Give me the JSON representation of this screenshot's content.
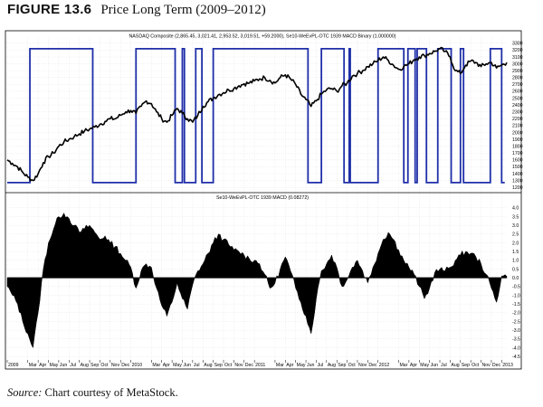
{
  "figure": {
    "label": "FIGURE 13.6",
    "title": "Price Long Term (2009–2012)"
  },
  "source": {
    "prefix": "Source:",
    "text": " Chart courtesy of MetaStock."
  },
  "chart_data": [
    {
      "type": "line",
      "title": "NASDAQ Composite (2,865.45, 3,021.41, 2,953.52, 3,019.51, +59.2000), Se10-WeEvPL-OTC 1939 MACD Binary (1.000000)",
      "ylim": [
        1150,
        3350
      ],
      "y_ticks": [
        1200,
        1300,
        1400,
        1500,
        1600,
        1700,
        1800,
        1900,
        2000,
        2100,
        2200,
        2300,
        2400,
        2500,
        2600,
        2700,
        2800,
        2900,
        3000,
        3100,
        3200,
        3300
      ],
      "grid": true,
      "series": [
        {
          "name": "NASDAQ Composite",
          "color": "#000000",
          "x": [
            0,
            0.5,
            1,
            1.5,
            2,
            2.5,
            3,
            3.5,
            4,
            4.5,
            5,
            5.5,
            6,
            6.5,
            7,
            7.5,
            8,
            8.5,
            9,
            9.5,
            10,
            10.5,
            11,
            11.5,
            12,
            12.5,
            13,
            13.5,
            14,
            14.5,
            15,
            15.5,
            16,
            16.5,
            17,
            17.5,
            18,
            18.5,
            19,
            19.5,
            20,
            20.5,
            21,
            21.5,
            22,
            22.5,
            23,
            23.5,
            24,
            24.5,
            25,
            25.5,
            26,
            26.5,
            27,
            27.5,
            28,
            28.5,
            29,
            29.5,
            30,
            30.5,
            31,
            31.5,
            32,
            32.5,
            33,
            33.5,
            34,
            34.5,
            35,
            35.5,
            36,
            36.5,
            37,
            37.5,
            38,
            38.5,
            39,
            39.5,
            40,
            40.5,
            41,
            41.5,
            42,
            42.5,
            43,
            43.5,
            44,
            44.5,
            45,
            45.5,
            46,
            46.5,
            47,
            47.5,
            48,
            48.5
          ],
          "values": [
            1600,
            1550,
            1500,
            1420,
            1350,
            1300,
            1400,
            1560,
            1650,
            1700,
            1800,
            1860,
            1900,
            1940,
            1980,
            2020,
            2050,
            2080,
            2120,
            2160,
            2200,
            2200,
            2250,
            2300,
            2320,
            2280,
            2380,
            2460,
            2420,
            2300,
            2200,
            2150,
            2250,
            2350,
            2280,
            2200,
            2150,
            2250,
            2380,
            2450,
            2500,
            2550,
            2580,
            2620,
            2640,
            2680,
            2710,
            2720,
            2750,
            2780,
            2800,
            2760,
            2720,
            2800,
            2840,
            2780,
            2700,
            2560,
            2480,
            2380,
            2460,
            2560,
            2620,
            2640,
            2600,
            2680,
            2720,
            2820,
            2860,
            2900,
            2960,
            3000,
            3050,
            3100,
            3050,
            2980,
            2920,
            2960,
            3000,
            3060,
            3100,
            3120,
            3150,
            3180,
            3220,
            3180,
            3100,
            2900,
            2860,
            2980,
            3040,
            3020,
            2960,
            3000,
            3020,
            2940,
            2980,
            3019.51
          ]
        }
      ]
    },
    {
      "type": "line",
      "series": [
        {
          "name": "Se10-WeEvPL-OTC 1939 MACD Binary",
          "color": "#1f2fa8",
          "x": [
            0,
            2.2,
            2.2,
            8.3,
            8.3,
            12.5,
            12.5,
            16.3,
            16.3,
            17.0,
            17.0,
            17.2,
            17.2,
            18.3,
            18.3,
            18.9,
            18.9,
            20.0,
            20.0,
            29.2,
            29.2,
            30.5,
            30.5,
            32.7,
            32.7,
            33.2,
            33.2,
            33.3,
            33.3,
            36.0,
            36.0,
            38.5,
            38.5,
            38.9,
            38.9,
            39.6,
            39.6,
            39.8,
            39.8,
            40.7,
            40.7,
            41.8,
            41.8,
            43.1,
            43.1,
            44.0,
            44.0,
            44.3,
            44.3,
            46.9,
            46.9,
            48.0,
            48.0,
            48.3
          ],
          "values": [
            1270,
            1270,
            3220,
            3220,
            1270,
            1270,
            3220,
            3220,
            1270,
            1270,
            3220,
            3220,
            1270,
            1270,
            3220,
            3220,
            1270,
            1270,
            3220,
            3220,
            1270,
            1270,
            3220,
            3220,
            1270,
            1270,
            3220,
            3220,
            1270,
            1270,
            3220,
            3220,
            1270,
            1270,
            3220,
            3220,
            1270,
            1270,
            3220,
            3220,
            1270,
            1270,
            3220,
            3220,
            1270,
            1270,
            3220,
            3220,
            1270,
            1270,
            3220,
            3220,
            1270,
            1270
          ]
        }
      ]
    },
    {
      "type": "area",
      "title": "Se10-WeEvPL-OTC 1939 MACD (0.08272)",
      "ylim": [
        -4.7,
        4.3
      ],
      "y_ticks": [
        4.0,
        3.5,
        3.0,
        2.5,
        2.0,
        1.5,
        1.0,
        0.5,
        0.0,
        -0.5,
        -1.0,
        -1.5,
        -2.0,
        -2.5,
        -3.0,
        -3.5,
        -4.0,
        -4.5
      ],
      "grid": true,
      "series": [
        {
          "name": "MACD",
          "color": "#000000",
          "x": [
            0,
            0.5,
            1,
            1.5,
            2,
            2.5,
            3,
            3.5,
            4,
            4.5,
            5,
            5.5,
            6,
            6.5,
            7,
            7.5,
            8,
            8.5,
            9,
            9.5,
            10,
            10.5,
            11,
            11.5,
            12,
            12.5,
            13,
            13.5,
            14,
            14.5,
            15,
            15.5,
            16,
            16.5,
            17,
            17.5,
            18,
            18.5,
            19,
            19.5,
            20,
            20.5,
            21,
            21.5,
            22,
            22.5,
            23,
            23.5,
            24,
            24.5,
            25,
            25.5,
            26,
            26.5,
            27,
            27.5,
            28,
            28.5,
            29,
            29.5,
            30,
            30.5,
            31,
            31.5,
            32,
            32.5,
            33,
            33.5,
            34,
            34.5,
            35,
            35.5,
            36,
            36.5,
            37,
            37.5,
            38,
            38.5,
            39,
            39.5,
            40,
            40.5,
            41,
            41.5,
            42,
            42.5,
            43,
            43.5,
            44,
            44.5,
            45,
            45.5,
            46,
            46.5,
            47,
            47.5,
            48,
            48.5
          ],
          "values": [
            -0.5,
            -1.0,
            -1.5,
            -2.5,
            -3.2,
            -4.0,
            -2.0,
            0.5,
            2.0,
            2.8,
            3.5,
            3.7,
            3.4,
            3.0,
            2.6,
            2.8,
            3.0,
            2.6,
            2.2,
            2.4,
            2.0,
            1.8,
            1.4,
            1.0,
            0.6,
            -0.6,
            0.4,
            0.8,
            0.6,
            -0.6,
            -1.6,
            -2.2,
            -1.4,
            -0.3,
            -1.2,
            -1.8,
            -0.4,
            0.4,
            0.8,
            1.4,
            2.0,
            2.5,
            2.2,
            1.9,
            1.6,
            1.5,
            1.3,
            1.1,
            1.0,
            0.8,
            0.2,
            -0.6,
            -0.3,
            0.5,
            1.2,
            0.4,
            -0.6,
            -1.4,
            -2.2,
            -3.2,
            -1.2,
            0.4,
            0.8,
            1.3,
            0.6,
            -0.5,
            -0.1,
            0.6,
            1.0,
            0.4,
            -0.3,
            0.6,
            1.4,
            2.2,
            2.6,
            2.2,
            1.6,
            1.0,
            0.6,
            0.2,
            -0.5,
            -1.2,
            -0.6,
            0.3,
            0.5,
            0.4,
            0.6,
            1.0,
            1.3,
            1.5,
            1.4,
            1.2,
            0.8,
            0.2,
            -0.6,
            -1.4,
            0.1,
            0.08272
          ]
        }
      ]
    },
    {
      "type": "table",
      "x_tick_labels": [
        "2009",
        "Mar",
        "Apr",
        "May",
        "Jun",
        "Jul",
        "Aug",
        "Sep",
        "Oct",
        "Nov",
        "Dec",
        "2010",
        "Mar",
        "Apr",
        "May",
        "Jun",
        "Jul",
        "Aug",
        "Sep",
        "Oct",
        "Nov",
        "Dec",
        "2011",
        "Mar",
        "Apr",
        "May",
        "Jun",
        "Jul",
        "Aug",
        "Sep",
        "Oct",
        "Nov",
        "Dec",
        "2012",
        "Mar",
        "Apr",
        "May",
        "Jun",
        "Jul",
        "Aug",
        "Sep",
        "Oct",
        "Nov",
        "Dec",
        "2013"
      ],
      "x_tick_positions": [
        0,
        2,
        3,
        4,
        5,
        6,
        7,
        8,
        9,
        10,
        11,
        12,
        14,
        15,
        16,
        17,
        18,
        19,
        20,
        21,
        22,
        23,
        24,
        26,
        27,
        28,
        29,
        30,
        31,
        32,
        33,
        34,
        35,
        36,
        38,
        39,
        40,
        41,
        42,
        43,
        44,
        45,
        46,
        47,
        48
      ]
    }
  ]
}
